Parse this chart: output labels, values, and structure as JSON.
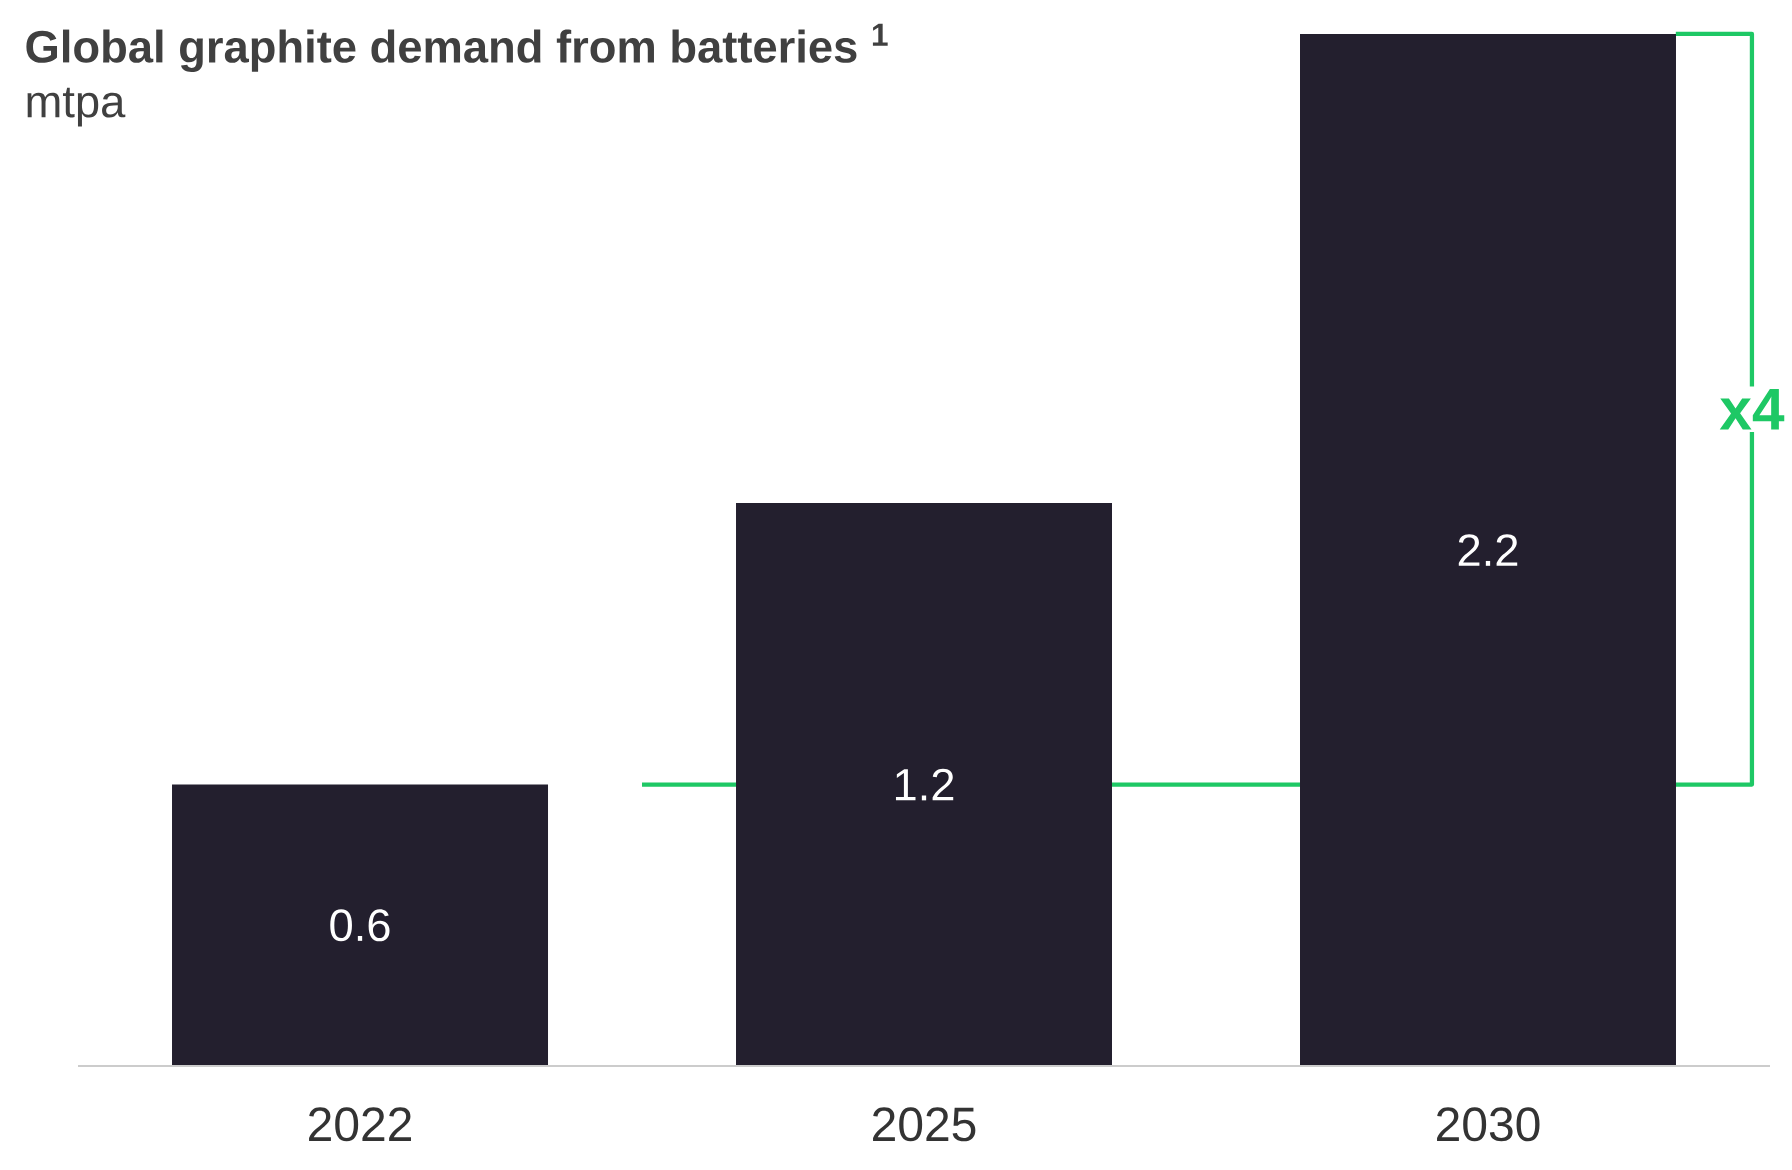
{
  "chart_data": {
    "type": "bar",
    "title": "**Global graphite demand from batteries $^{1}$**",
    "subtitle": "mtpa",
    "categories": [
      "2022",
      "2025",
      "2030"
    ],
    "values": [
      0.6,
      1.2,
      2.2
    ],
    "color": "#231f2e",
    "data_labels": true,
    "ref_lines": [
      {
        "axis": "y",
        "value": 0.6,
        "color": "#1ec865"
      }
    ],
    "annotations": [
      "x4"
    ]
  }
}
